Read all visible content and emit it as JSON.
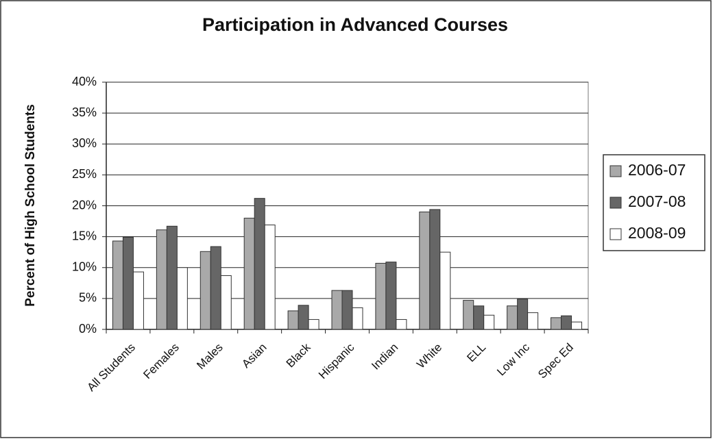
{
  "chart_data": {
    "type": "bar",
    "title": "Participation in Advanced Courses",
    "y_label": "Percent of High School Students",
    "categories": [
      "All Students",
      "Females",
      "Males",
      "Asian",
      "Black",
      "Hispanic",
      "Indian",
      "White",
      "ELL",
      "Low Inc",
      "Spec Ed"
    ],
    "series": [
      {
        "name": "2006-07",
        "color": "#a9a9a9",
        "values": [
          14.3,
          16.1,
          12.6,
          18.0,
          3.0,
          6.3,
          10.7,
          19.0,
          4.7,
          3.8,
          1.9
        ]
      },
      {
        "name": "2007-08",
        "color": "#666666",
        "values": [
          14.9,
          16.7,
          13.4,
          21.2,
          3.9,
          6.3,
          10.9,
          19.4,
          3.8,
          4.9,
          2.2
        ]
      },
      {
        "name": "2008-09",
        "color": "#ffffff",
        "values": [
          9.3,
          10.0,
          8.7,
          16.9,
          1.6,
          3.5,
          1.6,
          12.5,
          2.3,
          2.7,
          1.2
        ]
      }
    ],
    "ylim": [
      0,
      40
    ],
    "yticks": [
      {
        "value": 0,
        "label": "0%"
      },
      {
        "value": 5,
        "label": "5%"
      },
      {
        "value": 10,
        "label": "10%"
      },
      {
        "value": 15,
        "label": "15%"
      },
      {
        "value": 20,
        "label": "20%"
      },
      {
        "value": 25,
        "label": "25%"
      },
      {
        "value": 30,
        "label": "30%"
      },
      {
        "value": 35,
        "label": "35%"
      },
      {
        "value": 40,
        "label": "40%"
      }
    ],
    "grid": true,
    "legend": "right"
  }
}
